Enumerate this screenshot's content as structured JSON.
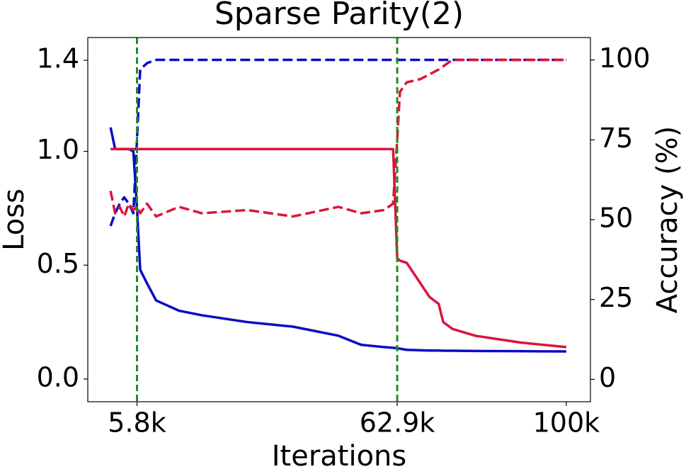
{
  "chart_data": {
    "type": "line",
    "title": "Sparse Parity(2)",
    "xlabel": "Iterations",
    "ylabel": "Loss",
    "y2label": "Accuracy (%)",
    "x": [
      0,
      1000,
      2000,
      3000,
      4000,
      5000,
      5800,
      6500,
      8000,
      10000,
      15000,
      20000,
      30000,
      40000,
      50000,
      55000,
      60000,
      62000,
      62900,
      63500,
      65000,
      68000,
      70000,
      72000,
      73000,
      75000,
      80000,
      90000,
      100000
    ],
    "xlim": [
      -5000,
      105300
    ],
    "xticks": [
      {
        "value": 5800,
        "label": "5.8k"
      },
      {
        "value": 62900,
        "label": "62.9k"
      },
      {
        "value": 100000,
        "label": "100k"
      }
    ],
    "ylim": [
      -0.1,
      1.5
    ],
    "yticks": [
      {
        "value": 0,
        "label": "0.0"
      },
      0.5,
      {
        "value": 1,
        "label": "1.0"
      },
      1.4
    ],
    "y2lim": [
      -7,
      107
    ],
    "y2ticks": [
      0,
      25,
      50,
      75,
      100
    ],
    "vlines": [
      5800,
      62900
    ],
    "vline_color": "#228b22",
    "series": [
      {
        "color": "#0b0bc8",
        "style": "solid",
        "axis": "y",
        "values": [
          1.105,
          1.01,
          1.01,
          1.01,
          1.01,
          1.0,
          0.75,
          0.48,
          0.42,
          0.345,
          0.3,
          0.28,
          0.25,
          0.23,
          0.19,
          0.15,
          0.14,
          0.137,
          0.135,
          0.133,
          0.128,
          0.126,
          0.125,
          0.125,
          0.124,
          0.124,
          0.123,
          0.122,
          0.121
        ]
      },
      {
        "color": "#dc143c",
        "style": "solid",
        "axis": "y",
        "values": [
          1.01,
          1.01,
          1.01,
          1.01,
          1.01,
          1.01,
          1.01,
          1.01,
          1.01,
          1.01,
          1.01,
          1.01,
          1.01,
          1.01,
          1.01,
          1.01,
          1.01,
          1.01,
          0.53,
          0.52,
          0.51,
          0.42,
          0.36,
          0.33,
          0.25,
          0.22,
          0.19,
          0.16,
          0.14
        ]
      },
      {
        "color": "#0b0bc8",
        "style": "dashed",
        "axis": "y2",
        "values": [
          48,
          52,
          55,
          57,
          55,
          52,
          75,
          97,
          99,
          100,
          100,
          100,
          100,
          100,
          100,
          100,
          100,
          100,
          100,
          100,
          100,
          100,
          100,
          100,
          100,
          100,
          100,
          100,
          100
        ]
      },
      {
        "color": "#dc143c",
        "style": "dashed",
        "axis": "y2",
        "values": [
          59,
          52,
          54,
          51,
          55,
          53,
          54,
          52,
          55,
          51,
          54,
          52,
          53,
          51,
          54,
          52,
          53,
          55,
          75,
          90,
          93,
          94,
          95.5,
          97,
          98,
          100,
          100,
          100,
          100
        ]
      }
    ]
  }
}
